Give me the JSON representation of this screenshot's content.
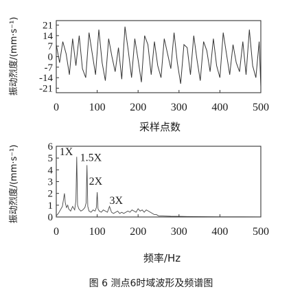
{
  "caption": "图 6  测点6时域波形及频谱图",
  "chart_data": [
    {
      "type": "line",
      "ylabel": "振动烈度/(mm·s⁻¹)",
      "xlabel": "采样点数",
      "xlim": [
        0,
        500
      ],
      "ylim": [
        -24,
        24
      ],
      "xticks": [
        "0",
        "100",
        "200",
        "300",
        "400",
        "500"
      ],
      "xtick_values": [
        0,
        100,
        200,
        300,
        400,
        500
      ],
      "yticks": [
        "21",
        "14",
        "7",
        "0",
        "-7",
        "-14",
        "-21"
      ],
      "ytick_values": [
        21,
        14,
        7,
        0,
        -7,
        -14,
        -21
      ],
      "grid": false,
      "series_color": "#333333",
      "x": [
        0,
        8,
        16,
        24,
        32,
        40,
        48,
        56,
        64,
        72,
        80,
        88,
        96,
        104,
        112,
        120,
        128,
        136,
        144,
        152,
        160,
        168,
        176,
        184,
        192,
        200,
        208,
        216,
        224,
        232,
        240,
        248,
        256,
        264,
        272,
        280,
        288,
        296,
        304,
        312,
        320,
        328,
        336,
        344,
        352,
        360,
        368,
        376,
        384,
        392,
        400,
        408,
        416,
        424,
        432,
        440,
        448,
        456,
        464,
        472,
        480,
        488,
        496,
        500
      ],
      "y": [
        8,
        -4,
        10,
        2,
        -12,
        12,
        -6,
        14,
        -8,
        -14,
        16,
        2,
        -12,
        18,
        -4,
        -16,
        12,
        0,
        -10,
        6,
        -15,
        20,
        4,
        -14,
        12,
        -2,
        -17,
        14,
        8,
        -12,
        10,
        -6,
        -14,
        12,
        2,
        -8,
        16,
        -4,
        -18,
        8,
        6,
        -12,
        14,
        -2,
        -16,
        10,
        4,
        -10,
        12,
        -6,
        -14,
        16,
        2,
        -12,
        8,
        -4,
        -10,
        10,
        -12,
        18,
        -6,
        -14,
        10,
        -20
      ]
    },
    {
      "type": "line",
      "ylabel": "振动烈度/(mm·s⁻¹)",
      "xlabel": "频率/Hz",
      "xlim": [
        0,
        500
      ],
      "ylim": [
        0,
        6
      ],
      "xticks": [
        "0",
        "100",
        "200",
        "300",
        "400",
        "500"
      ],
      "xtick_values": [
        0,
        100,
        200,
        300,
        400,
        500
      ],
      "yticks": [
        "6",
        "5",
        "4",
        "3",
        "2",
        "1",
        "0"
      ],
      "ytick_values": [
        6,
        5,
        4,
        3,
        2,
        1,
        0
      ],
      "grid": false,
      "series_color": "#444444",
      "x": [
        0,
        5,
        10,
        15,
        20,
        22,
        25,
        28,
        30,
        35,
        40,
        45,
        48,
        50,
        52,
        55,
        60,
        65,
        70,
        73,
        75,
        77,
        80,
        85,
        90,
        95,
        98,
        100,
        102,
        105,
        110,
        115,
        120,
        125,
        130,
        135,
        140,
        145,
        150,
        155,
        160,
        165,
        170,
        175,
        180,
        185,
        190,
        195,
        200,
        205,
        210,
        215,
        220,
        225,
        230,
        235,
        240,
        245,
        250,
        260,
        280,
        300,
        320,
        350,
        400,
        450,
        500
      ],
      "y": [
        0.1,
        0.3,
        0.6,
        0.9,
        2.0,
        1.2,
        0.8,
        1.0,
        0.7,
        0.5,
        0.9,
        0.6,
        1.4,
        5.1,
        1.0,
        0.7,
        0.5,
        0.6,
        0.8,
        1.2,
        4.4,
        0.9,
        0.5,
        0.4,
        0.6,
        0.5,
        0.8,
        2.1,
        0.7,
        0.5,
        0.4,
        0.6,
        0.5,
        0.4,
        0.9,
        0.4,
        0.3,
        0.4,
        0.5,
        0.3,
        0.4,
        0.3,
        0.4,
        0.5,
        0.4,
        0.6,
        0.5,
        0.4,
        0.7,
        0.5,
        0.6,
        0.4,
        0.6,
        0.5,
        0.4,
        0.3,
        0.2,
        0.2,
        0.1,
        0.08,
        0.06,
        0.05,
        0.04,
        0.03,
        0.02,
        0.02,
        0.01
      ],
      "annotations": [
        {
          "text": "1X",
          "x": 8,
          "y": 5.25
        },
        {
          "text": "1.5X",
          "x": 58,
          "y": 4.75
        },
        {
          "text": "2X",
          "x": 80,
          "y": 2.75
        },
        {
          "text": "3X",
          "x": 130,
          "y": 1.1
        }
      ]
    }
  ]
}
